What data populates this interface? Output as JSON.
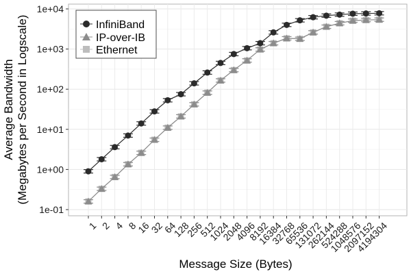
{
  "chart_data": {
    "type": "line",
    "xlabel": "Message Size (Bytes)",
    "ylabel_line1": "Average Bandwidth",
    "ylabel_line2": "(Megabytes per Second in Logscale)",
    "yscale": "log",
    "ylim": [
      0.1,
      10000
    ],
    "yticks": [
      0.1,
      1,
      10,
      100,
      1000,
      10000
    ],
    "ytick_labels": [
      "1e-01",
      "1e+00",
      "1e+01",
      "1e+02",
      "1e+03",
      "1e+04"
    ],
    "grid": true,
    "legend_position": "top-left",
    "categories": [
      "1",
      "2",
      "4",
      "8",
      "16",
      "32",
      "64",
      "128",
      "256",
      "512",
      "1024",
      "2048",
      "4096",
      "8192",
      "16384",
      "32768",
      "65536",
      "131072",
      "262144",
      "524288",
      "1048576",
      "2097152",
      "4194304"
    ],
    "series": [
      {
        "name": "InfiniBand",
        "marker": "circle",
        "color": "#2b2b2b",
        "values": [
          0.9,
          1.8,
          3.6,
          7,
          14,
          28,
          53,
          75,
          140,
          260,
          450,
          750,
          1050,
          1400,
          2600,
          4000,
          5200,
          6200,
          6800,
          7200,
          7600,
          7700,
          7800
        ]
      },
      {
        "name": "IP-over-IB",
        "marker": "triangle",
        "color": "#8c8c8c",
        "values": [
          0.16,
          0.33,
          0.65,
          1.35,
          2.6,
          5.5,
          11,
          21,
          42,
          82,
          165,
          300,
          520,
          980,
          1400,
          1850,
          1800,
          2600,
          3600,
          4400,
          5100,
          5300,
          5400
        ]
      },
      {
        "name": "Ethernet",
        "marker": "square",
        "color": "#bdbdbd",
        "values": [
          0.16,
          0.33,
          0.65,
          1.35,
          2.6,
          5.5,
          11,
          21,
          42,
          82,
          165,
          300,
          520,
          980,
          1400,
          1850,
          1800,
          2600,
          3600,
          4400,
          5100,
          5300,
          5400
        ]
      }
    ]
  }
}
